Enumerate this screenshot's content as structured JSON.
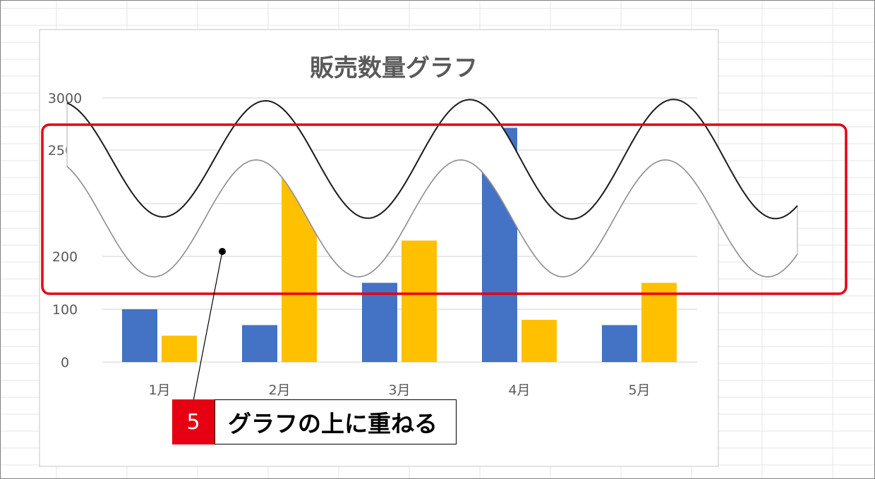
{
  "chart_data": {
    "type": "bar",
    "title": "販売数量グラフ",
    "categories": [
      "1月",
      "2月",
      "3月",
      "4月",
      "5月"
    ],
    "series": [
      {
        "values": [
          100,
          70,
          150,
          2720,
          70
        ],
        "color": "#4472c4"
      },
      {
        "values": [
          50,
          2430,
          230,
          80,
          150
        ],
        "color": "#ffc000"
      }
    ],
    "y_ticks_visible": [
      "3000",
      "2500",
      "200",
      "100",
      "0"
    ],
    "axis_break": true,
    "grid": true,
    "xlabel": "",
    "ylabel": ""
  },
  "annotation": {
    "step_number": "5",
    "instruction": "グラフの上に重ねる",
    "highlight_color": "#e60012",
    "wave_shape": "white wavy band with black edge lines (break marks)"
  },
  "background": "spreadsheet-grid"
}
